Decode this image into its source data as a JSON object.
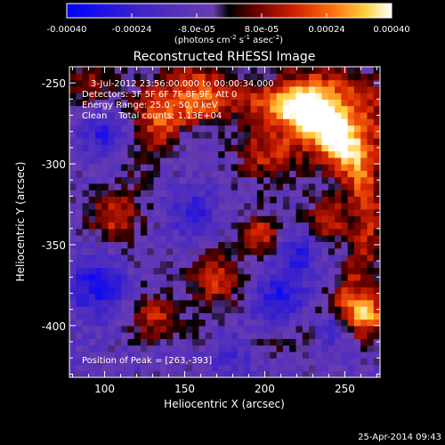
{
  "chart_data": {
    "type": "heatmap",
    "title": "Reconstructed RHESSI Image",
    "xlabel": "Heliocentric X (arcsec)",
    "ylabel": "Heliocentric Y (arcsec)",
    "xlim": [
      78,
      272
    ],
    "ylim": [
      -432,
      -240
    ],
    "x_ticks": [
      100,
      150,
      200,
      250
    ],
    "y_ticks": [
      -250,
      -300,
      -350,
      -400
    ],
    "colorbar": {
      "range": [
        -0.0004,
        0.0004
      ],
      "tick_labels": [
        "-0.00040",
        "-0.00024",
        "-8.0e-05",
        "8.0e-05",
        "0.00024",
        "0.00040"
      ],
      "unit_prefix": "(photons cm",
      "unit_exp1": "-2",
      "unit_mid1": " s",
      "unit_exp2": "-1",
      "unit_mid2": " asec",
      "unit_exp3": "-2",
      "unit_suffix": ")"
    },
    "annotations": {
      "time_range": "3-Jul-2012 23:56:00.000 to 00:00:34.000",
      "detectors": "Detectors: 3F 5F 6F 7F 8F 9F, Att 0",
      "energy": "Energy Range: 25.0 - 50.0 keV",
      "clean": "Clean    Total counts: 1.13E+04",
      "peak": "Position of Peak = [263,-393]"
    },
    "grid_size": [
      48,
      48
    ],
    "peak": {
      "x": 263,
      "y": -393
    },
    "features": [
      {
        "shape": "ring",
        "cx": 190,
        "cy": -335,
        "r": 75,
        "width": 11,
        "v": 0.00024
      },
      {
        "shape": "blob",
        "x": 250,
        "y": -275,
        "r": 22,
        "v": 0.00034
      },
      {
        "shape": "blob",
        "x": 263,
        "y": -393,
        "r": 10,
        "v": 0.0004
      },
      {
        "shape": "blob",
        "x": 198,
        "y": -343,
        "r": 9,
        "v": 0.00026
      },
      {
        "shape": "blob",
        "x": 135,
        "y": -268,
        "r": 14,
        "v": 0.00026
      },
      {
        "shape": "blob",
        "x": 105,
        "y": -332,
        "r": 11,
        "v": 0.00024
      },
      {
        "shape": "blob",
        "x": 200,
        "y": -292,
        "r": 13,
        "v": 0.00022
      },
      {
        "shape": "blob",
        "x": 170,
        "y": -372,
        "r": 12,
        "v": 0.00026
      },
      {
        "shape": "blob",
        "x": 130,
        "y": -395,
        "r": 10,
        "v": 0.00022
      },
      {
        "shape": "blob",
        "x": 225,
        "y": -262,
        "r": 14,
        "v": 0.0003
      },
      {
        "shape": "blob",
        "x": 240,
        "y": -335,
        "r": 10,
        "v": 0.00022
      },
      {
        "shape": "blob",
        "x": 90,
        "y": -250,
        "r": 12,
        "v": 0.00018
      },
      {
        "shape": "blob",
        "x": 160,
        "y": -250,
        "r": 13,
        "v": 0.00022
      },
      {
        "shape": "blob",
        "x": 100,
        "y": -280,
        "r": 10,
        "v": -0.0002
      },
      {
        "shape": "blob",
        "x": 95,
        "y": -375,
        "r": 12,
        "v": -0.00025
      },
      {
        "shape": "blob",
        "x": 155,
        "y": -330,
        "r": 10,
        "v": -0.00018
      },
      {
        "shape": "blob",
        "x": 220,
        "y": -355,
        "r": 10,
        "v": -0.00018
      },
      {
        "shape": "blob",
        "x": 210,
        "y": -385,
        "r": 12,
        "v": -0.00022
      },
      {
        "shape": "blob",
        "x": 240,
        "y": -400,
        "r": 8,
        "v": -0.0002
      },
      {
        "shape": "blob",
        "x": 180,
        "y": -415,
        "r": 10,
        "v": -0.00015
      },
      {
        "shape": "blob",
        "x": 150,
        "y": -280,
        "r": 8,
        "v": -0.00012
      }
    ],
    "background": -9e-05
  },
  "footer": {
    "timestamp": "25-Apr-2014 09:43"
  }
}
